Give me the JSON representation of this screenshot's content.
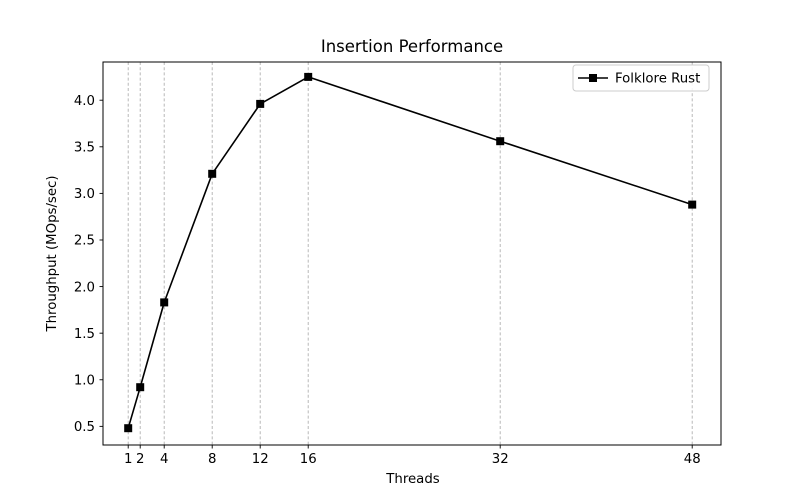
{
  "figure": {
    "background": "#ffffff",
    "text_color": "#000000"
  },
  "chart_data": {
    "type": "line",
    "title": "Insertion Performance",
    "xlabel": "Threads",
    "ylabel": "Throughput (MOps/sec)",
    "x": [
      1,
      2,
      4,
      8,
      12,
      16,
      32,
      48
    ],
    "series": [
      {
        "name": "Folklore Rust",
        "color": "#000000",
        "marker": "square",
        "values": [
          0.48,
          0.92,
          1.83,
          3.21,
          3.96,
          4.25,
          3.56,
          2.88
        ]
      }
    ],
    "xticks": [
      1,
      2,
      4,
      8,
      12,
      16,
      32,
      48
    ],
    "yticks": [
      0.5,
      1.0,
      1.5,
      2.0,
      2.5,
      3.0,
      3.5,
      4.0
    ],
    "xlim": [
      -1.1,
      50.4
    ],
    "ylim": [
      0.3,
      4.41
    ],
    "grid": {
      "axis": "x",
      "linestyle": "dashed",
      "color": "#b0b0b0"
    },
    "legend": {
      "position": "upper right",
      "entries": [
        "Folklore Rust"
      ]
    },
    "axes_color": "#000000"
  }
}
